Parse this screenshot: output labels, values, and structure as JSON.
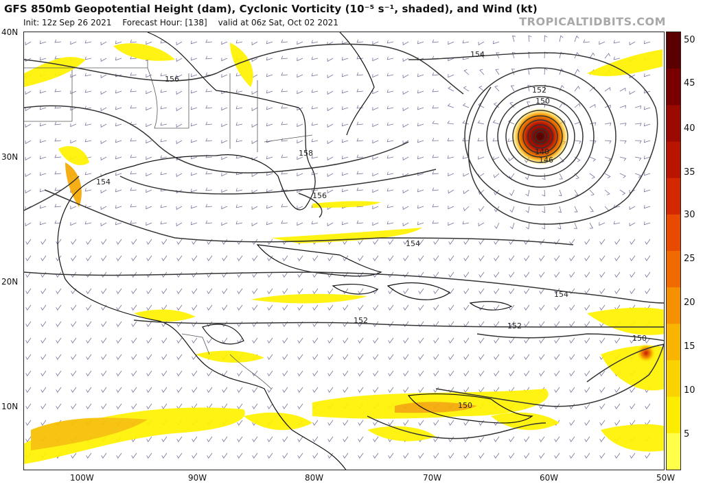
{
  "header": {
    "title": "GFS 850mb Geopotential Height (dam), Cyclonic Vorticity (10⁻⁵ s⁻¹, shaded), and Wind (kt)",
    "init": "Init: 12z Sep 26 2021",
    "forecast_hour": "Forecast Hour: [138]",
    "valid": "valid at 06z Sat, Oct 02 2021",
    "brand": "TROPICALTIDBITS.COM"
  },
  "axes": {
    "lat_labels": [
      "40N",
      "30N",
      "20N",
      "10N"
    ],
    "lon_labels": [
      "100W",
      "90W",
      "80W",
      "70W",
      "60W",
      "50W"
    ]
  },
  "colorbar": {
    "labels": [
      "50",
      "45",
      "40",
      "35",
      "30",
      "25",
      "20",
      "15",
      "10",
      "5"
    ],
    "colors": [
      "#5a0000",
      "#7a0000",
      "#9a0a00",
      "#b81400",
      "#d42800",
      "#e84a00",
      "#f06a00",
      "#f59000",
      "#f8b400",
      "#fad200",
      "#fcec00",
      "#ffff4a"
    ]
  },
  "contour_labels": [
    "156",
    "154",
    "152",
    "150",
    "158",
    "156",
    "154",
    "154",
    "152",
    "152",
    "150",
    "150",
    "140",
    "146",
    "154"
  ],
  "colors": {
    "contour": "#333333",
    "barb": "#7a6e9a",
    "coast": "#111111",
    "border": "#555555",
    "vort_low": "#fff200",
    "vort_mid": "#f5a800",
    "vort_high": "#d23000"
  }
}
